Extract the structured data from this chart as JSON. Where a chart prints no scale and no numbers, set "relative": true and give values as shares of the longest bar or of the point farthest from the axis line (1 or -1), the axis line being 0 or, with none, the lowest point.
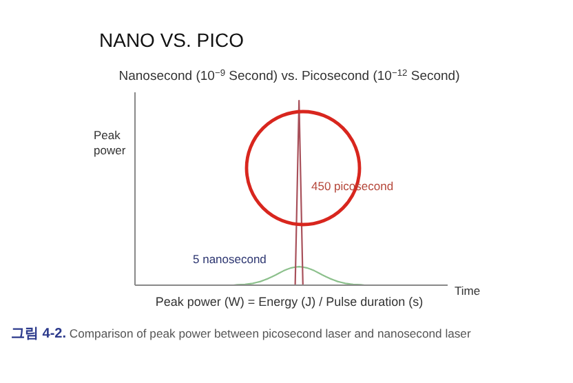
{
  "chart_data": {
    "type": "line",
    "relative": true,
    "title": "NANO VS. PICO",
    "subtitle": "Nanosecond (10$^{−9}$ Second) vs. Picosecond (10$^{−12}$ Second)",
    "xlabel": "Time",
    "ylabel": "Peak power",
    "categories": [
      null,
      null,
      null,
      null,
      null,
      null,
      null,
      null,
      null,
      null,
      null,
      null,
      null,
      null,
      null,
      null,
      null,
      null,
      null,
      null,
      null,
      null,
      null,
      null,
      null,
      null,
      null,
      null,
      null,
      null,
      null,
      null,
      null,
      null,
      null,
      null,
      null,
      null,
      null,
      null,
      null,
      null,
      null,
      null,
      null,
      null,
      null,
      null,
      null,
      null,
      null,
      null,
      null,
      null,
      null,
      null,
      null,
      null,
      null,
      null,
      null,
      null,
      null,
      null,
      null,
      null,
      null,
      null,
      null,
      null,
      null,
      null,
      null,
      null,
      null,
      null,
      null,
      null,
      null,
      null,
      null
    ],
    "series": [
      {
        "name": "5 nanosecond",
        "color": "#8cc08c",
        "values": [
          null,
          null,
          null,
          null,
          null,
          null,
          null,
          null,
          null,
          null,
          null,
          null,
          null,
          null,
          null,
          null,
          null,
          null,
          null,
          null,
          null,
          null,
          null,
          null,
          null,
          0,
          0.002,
          0.003,
          0.004,
          0.007,
          0.01,
          0.015,
          0.02,
          0.028,
          0.036,
          0.046,
          0.056,
          0.067,
          0.078,
          0.087,
          0.094,
          0.098,
          0.1,
          0.098,
          0.094,
          0.087,
          0.078,
          0.067,
          0.056,
          0.046,
          0.036,
          0.028,
          0.02,
          0.015,
          0.01,
          0.007,
          0.004,
          0.003,
          0.002,
          0,
          null,
          null,
          null,
          null,
          null,
          null,
          null,
          null,
          null,
          null,
          null,
          null,
          null,
          null,
          null,
          null,
          null,
          null,
          null,
          null,
          null
        ]
      },
      {
        "name": "450 picosecond",
        "color": "#a8505a",
        "values": [
          null,
          null,
          null,
          null,
          null,
          null,
          null,
          null,
          null,
          null,
          null,
          null,
          null,
          null,
          null,
          null,
          null,
          null,
          null,
          null,
          null,
          null,
          null,
          null,
          null,
          null,
          null,
          null,
          null,
          null,
          null,
          null,
          null,
          null,
          null,
          null,
          null,
          null,
          null,
          null,
          null,
          0,
          1,
          0,
          null,
          null,
          null,
          null,
          null,
          null,
          null,
          null,
          null,
          null,
          null,
          null,
          null,
          null,
          null,
          null,
          null,
          null,
          null,
          null,
          null,
          null,
          null,
          null,
          null,
          null,
          null,
          null,
          null,
          null,
          null,
          null,
          null,
          null,
          null,
          null,
          null
        ]
      }
    ],
    "annotations": [
      "Peak power (W) = Energy (J) / Pulse duration (s)",
      "그림 4-2. Comparison of peak power between picosecond laser and nanosecond laser"
    ]
  }
}
